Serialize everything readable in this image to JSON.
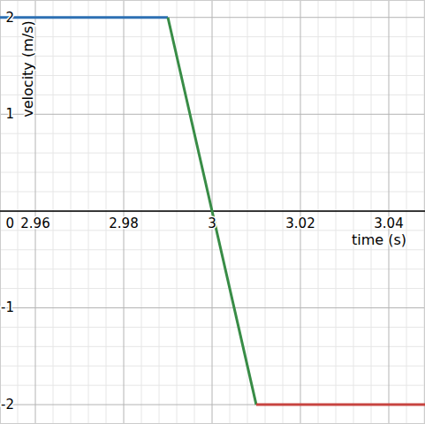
{
  "chart_data": {
    "type": "line",
    "x_label": "time (s)",
    "y_label": "velocity (m/s)",
    "xlim": [
      2.952,
      3.0482
    ],
    "ylim": [
      -2.2,
      2.18
    ],
    "xticks": [
      2.96,
      2.98,
      3,
      3.02,
      3.04
    ],
    "yticks": [
      -2,
      -1,
      0,
      1,
      2
    ],
    "grid": true,
    "series": [
      {
        "color": "#2d70b3",
        "x": [
          2.952,
          2.99
        ],
        "values": [
          2,
          2
        ]
      },
      {
        "color": "#388c46",
        "x": [
          2.99,
          3.01
        ],
        "values": [
          2,
          -2
        ]
      },
      {
        "color": "#c74440",
        "x": [
          3.01,
          3.0482
        ],
        "values": [
          -2,
          -2
        ]
      }
    ]
  }
}
